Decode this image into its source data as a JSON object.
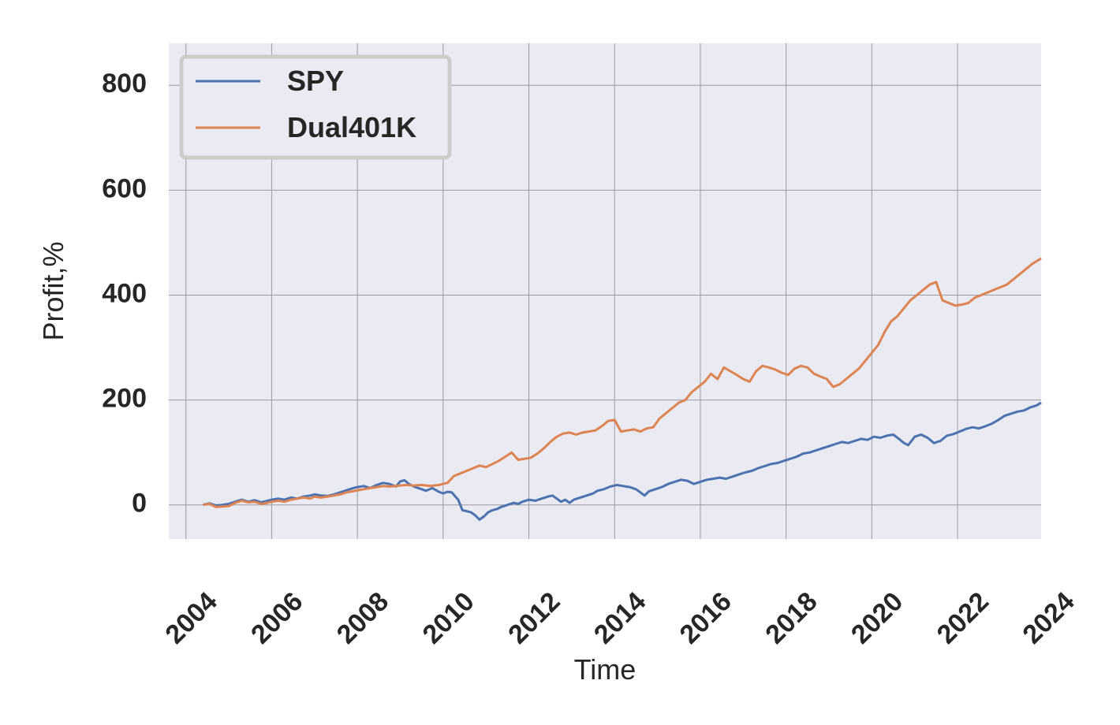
{
  "chart_data": {
    "type": "line",
    "title": "",
    "xlabel": "Time",
    "ylabel": "Profit,%",
    "xlim": [
      2003.6,
      2023.95
    ],
    "ylim": [
      -65,
      880
    ],
    "x_ticks": [
      2004,
      2006,
      2008,
      2010,
      2012,
      2014,
      2016,
      2018,
      2020,
      2022,
      2024
    ],
    "x_tick_labels": [
      "2004",
      "2006",
      "2008",
      "2010",
      "2012",
      "2014",
      "2016",
      "2018",
      "2020",
      "2022",
      "2024"
    ],
    "y_ticks": [
      0,
      200,
      400,
      600,
      800
    ],
    "y_tick_labels": [
      "0",
      "200",
      "400",
      "600",
      "800"
    ],
    "grid": true,
    "legend_position": "upper-left",
    "series": [
      {
        "name": "SPY",
        "color": "#4c72b0",
        "points": [
          [
            2004.4,
            0
          ],
          [
            2004.55,
            3
          ],
          [
            2004.7,
            -1
          ],
          [
            2004.85,
            0
          ],
          [
            2005.0,
            2
          ],
          [
            2005.15,
            6
          ],
          [
            2005.3,
            10
          ],
          [
            2005.45,
            6
          ],
          [
            2005.6,
            9
          ],
          [
            2005.75,
            5
          ],
          [
            2005.9,
            8
          ],
          [
            2006.0,
            10
          ],
          [
            2006.15,
            12
          ],
          [
            2006.3,
            10
          ],
          [
            2006.45,
            14
          ],
          [
            2006.6,
            12
          ],
          [
            2006.75,
            16
          ],
          [
            2006.9,
            18
          ],
          [
            2007.0,
            20
          ],
          [
            2007.15,
            18
          ],
          [
            2007.3,
            17
          ],
          [
            2007.45,
            20
          ],
          [
            2007.6,
            24
          ],
          [
            2007.75,
            28
          ],
          [
            2007.9,
            32
          ],
          [
            2008.0,
            34
          ],
          [
            2008.15,
            36
          ],
          [
            2008.3,
            32
          ],
          [
            2008.45,
            38
          ],
          [
            2008.6,
            42
          ],
          [
            2008.75,
            40
          ],
          [
            2008.9,
            35
          ],
          [
            2009.0,
            45
          ],
          [
            2009.1,
            47
          ],
          [
            2009.2,
            40
          ],
          [
            2009.35,
            34
          ],
          [
            2009.5,
            30
          ],
          [
            2009.6,
            27
          ],
          [
            2009.75,
            32
          ],
          [
            2009.9,
            25
          ],
          [
            2010.0,
            22
          ],
          [
            2010.1,
            25
          ],
          [
            2010.2,
            24
          ],
          [
            2010.35,
            10
          ],
          [
            2010.45,
            -10
          ],
          [
            2010.55,
            -12
          ],
          [
            2010.65,
            -14
          ],
          [
            2010.75,
            -20
          ],
          [
            2010.85,
            -28
          ],
          [
            2010.95,
            -22
          ],
          [
            2011.05,
            -14
          ],
          [
            2011.15,
            -10
          ],
          [
            2011.25,
            -8
          ],
          [
            2011.35,
            -4
          ],
          [
            2011.5,
            0
          ],
          [
            2011.65,
            4
          ],
          [
            2011.75,
            2
          ],
          [
            2011.85,
            6
          ],
          [
            2012.0,
            10
          ],
          [
            2012.15,
            8
          ],
          [
            2012.3,
            12
          ],
          [
            2012.45,
            16
          ],
          [
            2012.55,
            18
          ],
          [
            2012.65,
            12
          ],
          [
            2012.75,
            6
          ],
          [
            2012.85,
            10
          ],
          [
            2012.95,
            4
          ],
          [
            2013.05,
            10
          ],
          [
            2013.2,
            14
          ],
          [
            2013.35,
            18
          ],
          [
            2013.5,
            22
          ],
          [
            2013.6,
            27
          ],
          [
            2013.75,
            30
          ],
          [
            2013.9,
            35
          ],
          [
            2014.05,
            38
          ],
          [
            2014.2,
            36
          ],
          [
            2014.35,
            34
          ],
          [
            2014.5,
            30
          ],
          [
            2014.6,
            24
          ],
          [
            2014.7,
            18
          ],
          [
            2014.8,
            26
          ],
          [
            2014.95,
            30
          ],
          [
            2015.1,
            34
          ],
          [
            2015.25,
            40
          ],
          [
            2015.4,
            44
          ],
          [
            2015.55,
            48
          ],
          [
            2015.7,
            46
          ],
          [
            2015.85,
            40
          ],
          [
            2016.0,
            44
          ],
          [
            2016.15,
            48
          ],
          [
            2016.3,
            50
          ],
          [
            2016.45,
            52
          ],
          [
            2016.6,
            50
          ],
          [
            2016.75,
            54
          ],
          [
            2016.9,
            58
          ],
          [
            2017.05,
            62
          ],
          [
            2017.2,
            65
          ],
          [
            2017.35,
            70
          ],
          [
            2017.5,
            74
          ],
          [
            2017.65,
            78
          ],
          [
            2017.8,
            80
          ],
          [
            2017.95,
            84
          ],
          [
            2018.1,
            88
          ],
          [
            2018.25,
            92
          ],
          [
            2018.4,
            98
          ],
          [
            2018.55,
            100
          ],
          [
            2018.7,
            104
          ],
          [
            2018.85,
            108
          ],
          [
            2019.0,
            112
          ],
          [
            2019.15,
            116
          ],
          [
            2019.3,
            120
          ],
          [
            2019.45,
            118
          ],
          [
            2019.6,
            122
          ],
          [
            2019.75,
            126
          ],
          [
            2019.9,
            124
          ],
          [
            2020.05,
            130
          ],
          [
            2020.2,
            128
          ],
          [
            2020.35,
            132
          ],
          [
            2020.5,
            134
          ],
          [
            2020.6,
            128
          ],
          [
            2020.75,
            118
          ],
          [
            2020.85,
            114
          ],
          [
            2021.0,
            130
          ],
          [
            2021.15,
            134
          ],
          [
            2021.3,
            128
          ],
          [
            2021.45,
            118
          ],
          [
            2021.6,
            122
          ],
          [
            2021.75,
            132
          ],
          [
            2021.9,
            135
          ],
          [
            2022.05,
            140
          ],
          [
            2022.2,
            145
          ],
          [
            2022.35,
            148
          ],
          [
            2022.5,
            146
          ],
          [
            2022.65,
            150
          ],
          [
            2022.8,
            155
          ],
          [
            2022.95,
            162
          ],
          [
            2023.1,
            170
          ],
          [
            2023.25,
            174
          ],
          [
            2023.4,
            178
          ],
          [
            2023.55,
            180
          ],
          [
            2023.7,
            186
          ],
          [
            2023.85,
            190
          ],
          [
            2023.95,
            195
          ]
        ]
      },
      {
        "name": "Dual401K",
        "color": "#dd8452",
        "points": [
          [
            2004.4,
            0
          ],
          [
            2004.55,
            2
          ],
          [
            2004.7,
            -4
          ],
          [
            2004.85,
            -3
          ],
          [
            2005.0,
            -2
          ],
          [
            2005.15,
            4
          ],
          [
            2005.3,
            8
          ],
          [
            2005.45,
            5
          ],
          [
            2005.6,
            6
          ],
          [
            2005.75,
            2
          ],
          [
            2005.9,
            4
          ],
          [
            2006.0,
            6
          ],
          [
            2006.15,
            8
          ],
          [
            2006.3,
            6
          ],
          [
            2006.45,
            10
          ],
          [
            2006.6,
            12
          ],
          [
            2006.75,
            14
          ],
          [
            2006.9,
            12
          ],
          [
            2007.0,
            16
          ],
          [
            2007.15,
            14
          ],
          [
            2007.3,
            16
          ],
          [
            2007.45,
            18
          ],
          [
            2007.6,
            20
          ],
          [
            2007.75,
            24
          ],
          [
            2007.9,
            26
          ],
          [
            2008.0,
            28
          ],
          [
            2008.15,
            30
          ],
          [
            2008.3,
            32
          ],
          [
            2008.45,
            34
          ],
          [
            2008.6,
            36
          ],
          [
            2008.75,
            35
          ],
          [
            2008.9,
            36
          ],
          [
            2009.0,
            37
          ],
          [
            2009.15,
            38
          ],
          [
            2009.3,
            37
          ],
          [
            2009.5,
            38
          ],
          [
            2009.7,
            36
          ],
          [
            2009.9,
            38
          ],
          [
            2010.0,
            40
          ],
          [
            2010.1,
            42
          ],
          [
            2010.25,
            55
          ],
          [
            2010.4,
            60
          ],
          [
            2010.55,
            65
          ],
          [
            2010.7,
            70
          ],
          [
            2010.85,
            75
          ],
          [
            2011.0,
            72
          ],
          [
            2011.15,
            78
          ],
          [
            2011.3,
            84
          ],
          [
            2011.45,
            92
          ],
          [
            2011.6,
            100
          ],
          [
            2011.75,
            86
          ],
          [
            2011.9,
            88
          ],
          [
            2012.05,
            90
          ],
          [
            2012.2,
            98
          ],
          [
            2012.35,
            108
          ],
          [
            2012.5,
            120
          ],
          [
            2012.65,
            130
          ],
          [
            2012.8,
            136
          ],
          [
            2012.95,
            138
          ],
          [
            2013.1,
            134
          ],
          [
            2013.25,
            138
          ],
          [
            2013.4,
            140
          ],
          [
            2013.55,
            142
          ],
          [
            2013.7,
            150
          ],
          [
            2013.85,
            160
          ],
          [
            2014.0,
            162
          ],
          [
            2014.15,
            140
          ],
          [
            2014.3,
            142
          ],
          [
            2014.45,
            144
          ],
          [
            2014.6,
            140
          ],
          [
            2014.75,
            146
          ],
          [
            2014.9,
            148
          ],
          [
            2015.05,
            165
          ],
          [
            2015.2,
            175
          ],
          [
            2015.35,
            185
          ],
          [
            2015.5,
            195
          ],
          [
            2015.65,
            200
          ],
          [
            2015.8,
            215
          ],
          [
            2015.95,
            225
          ],
          [
            2016.1,
            235
          ],
          [
            2016.25,
            250
          ],
          [
            2016.4,
            240
          ],
          [
            2016.55,
            262
          ],
          [
            2016.7,
            255
          ],
          [
            2016.85,
            248
          ],
          [
            2017.0,
            240
          ],
          [
            2017.15,
            235
          ],
          [
            2017.3,
            255
          ],
          [
            2017.45,
            265
          ],
          [
            2017.6,
            262
          ],
          [
            2017.75,
            258
          ],
          [
            2017.9,
            252
          ],
          [
            2018.05,
            248
          ],
          [
            2018.2,
            260
          ],
          [
            2018.35,
            265
          ],
          [
            2018.5,
            262
          ],
          [
            2018.65,
            250
          ],
          [
            2018.8,
            245
          ],
          [
            2018.95,
            240
          ],
          [
            2019.1,
            225
          ],
          [
            2019.25,
            230
          ],
          [
            2019.4,
            240
          ],
          [
            2019.55,
            250
          ],
          [
            2019.7,
            260
          ],
          [
            2019.85,
            275
          ],
          [
            2020.0,
            290
          ],
          [
            2020.15,
            305
          ],
          [
            2020.3,
            330
          ],
          [
            2020.45,
            350
          ],
          [
            2020.6,
            360
          ],
          [
            2020.75,
            375
          ],
          [
            2020.9,
            390
          ],
          [
            2021.05,
            400
          ],
          [
            2021.2,
            410
          ],
          [
            2021.35,
            420
          ],
          [
            2021.5,
            425
          ],
          [
            2021.65,
            390
          ],
          [
            2021.8,
            385
          ],
          [
            2021.95,
            380
          ],
          [
            2022.1,
            382
          ],
          [
            2022.25,
            385
          ],
          [
            2022.4,
            395
          ],
          [
            2022.55,
            400
          ],
          [
            2022.7,
            405
          ],
          [
            2022.85,
            410
          ],
          [
            2023.0,
            415
          ],
          [
            2023.15,
            420
          ],
          [
            2023.3,
            430
          ],
          [
            2023.45,
            440
          ],
          [
            2023.6,
            450
          ],
          [
            2023.75,
            460
          ],
          [
            2023.95,
            470
          ]
        ]
      }
    ]
  }
}
